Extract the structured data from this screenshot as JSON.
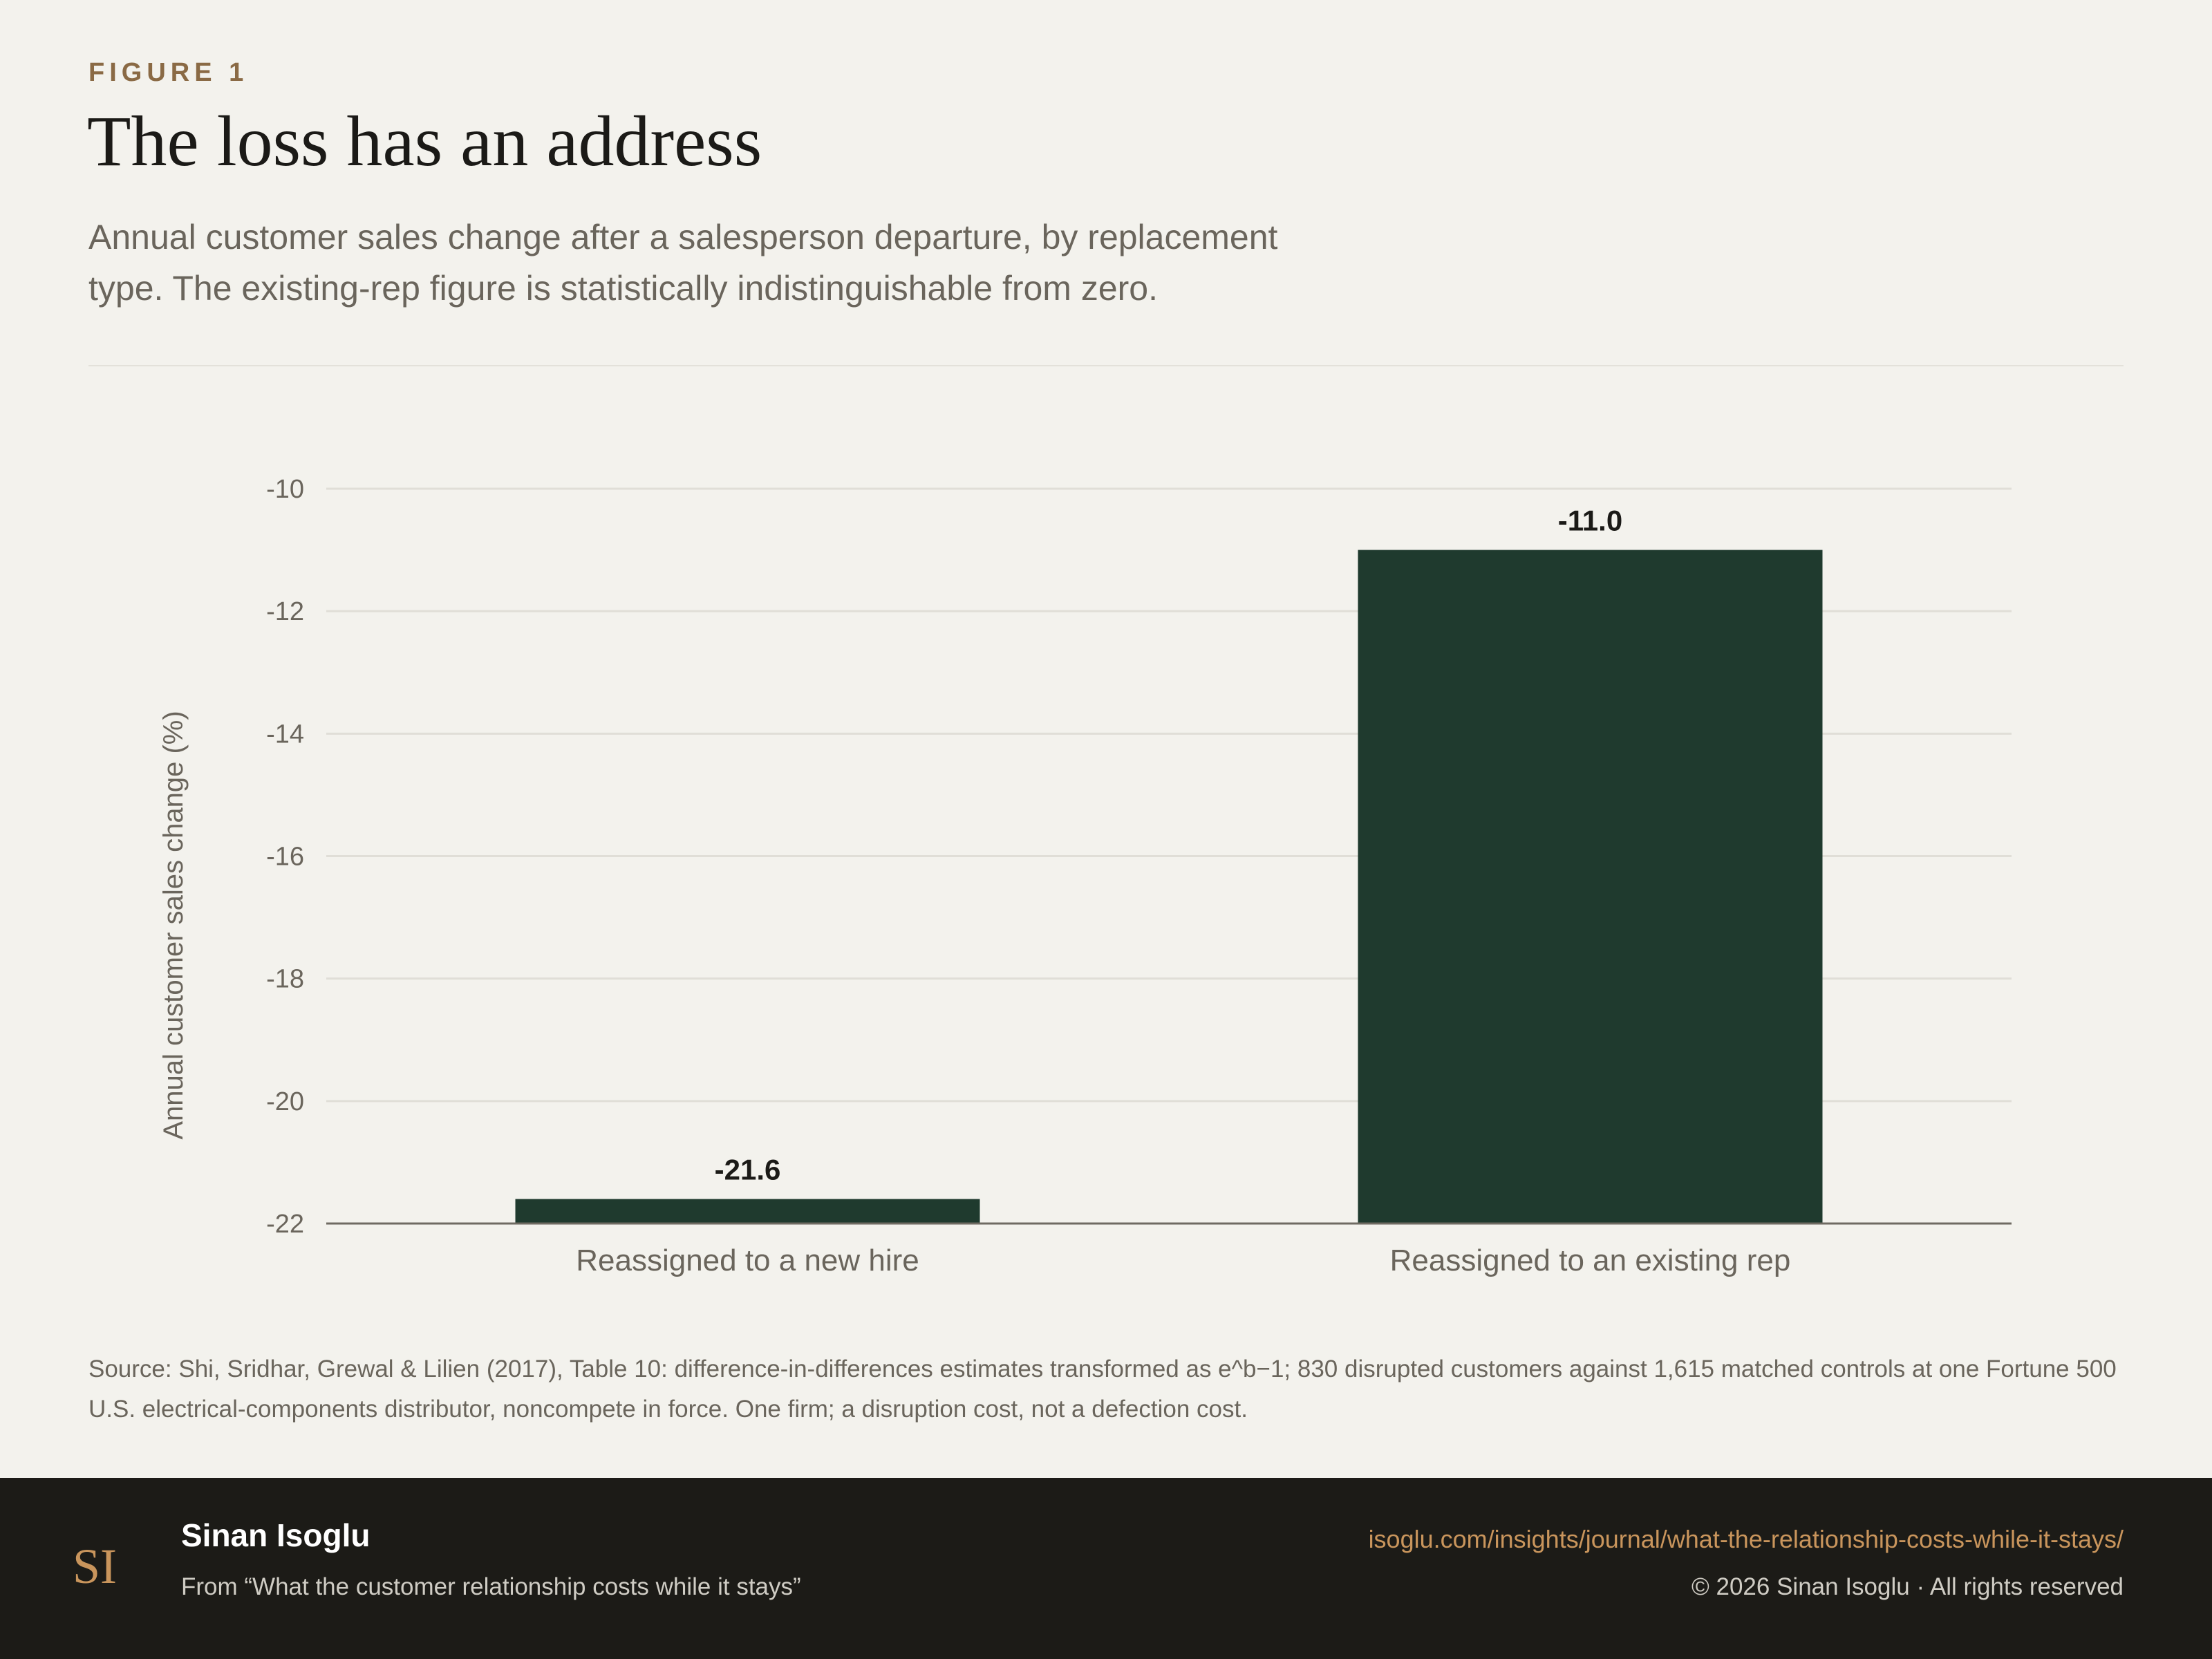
{
  "header": {
    "eyebrow": "FIGURE 1",
    "title": "The loss has an address",
    "subtitle": "Annual customer sales change after a salesperson departure, by replacement type. The existing-rep figure is statistically indistinguishable from zero."
  },
  "chart_data": {
    "type": "bar",
    "categories": [
      "Reassigned to a new hire",
      "Reassigned to an existing rep"
    ],
    "values": [
      -21.6,
      -11.0
    ],
    "value_labels": [
      "-21.6",
      "-11.0"
    ],
    "ylabel": "Annual customer sales change (%)",
    "ylim": [
      -22,
      -10
    ],
    "yticks": [
      -10,
      -12,
      -14,
      -16,
      -18,
      -20,
      -22
    ],
    "ytick_labels": [
      "-10",
      "-12",
      "-14",
      "-16",
      "-18",
      "-20",
      "-22"
    ],
    "grid": true,
    "bar_color": "#1f3a2e"
  },
  "source": "Source: Shi, Sridhar, Grewal & Lilien (2017), Table 10: difference-in-differences estimates transformed as e^b−1; 830 disrupted customers against 1,615 matched controls at one Fortune 500 U.S. electrical-components distributor, noncompete in force. One firm; a disruption cost, not a defection cost.",
  "footer": {
    "logo_text": "SI",
    "author": "Sinan Isoglu",
    "from": "From “What the customer relationship costs while it stays”",
    "url": "isoglu.com/insights/journal/what-the-relationship-costs-while-it-stays/",
    "copyright": "© 2026 Sinan Isoglu · All rights reserved"
  },
  "colors": {
    "background": "#f3f2ed",
    "accent": "#8a6a45",
    "footer_bg": "#1c1b17",
    "link": "#c9955c"
  }
}
